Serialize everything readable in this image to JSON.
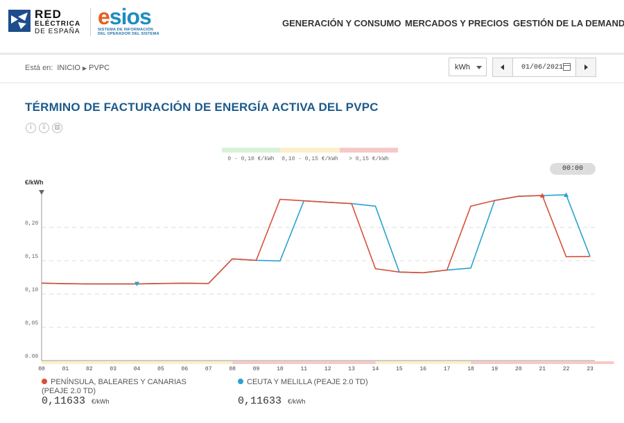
{
  "header": {
    "ree_line1": "RED",
    "ree_line2": "ELÉCTRICA",
    "ree_line3": "DE ESPAÑA",
    "esios_e": "e",
    "esios_rest": "sios",
    "esios_sub1": "SISTEMA DE INFORMACIÓN",
    "esios_sub2": "DEL OPERADOR DEL SISTEMA",
    "nav": [
      "GENERACIÓN Y CONSUMO",
      "MERCADOS Y PRECIOS",
      "GESTIÓN DE LA DEMANDA"
    ]
  },
  "breadcrumb": {
    "label": "Está en:",
    "home": "INICIO",
    "current": "PVPC"
  },
  "controls": {
    "unit": "kWh",
    "date": "01/06/2021"
  },
  "page_title": "TÉRMINO DE FACTURACIÓN DE ENERGÍA ACTIVA DEL PVPC",
  "icons": [
    "info-icon",
    "download-icon",
    "chart-icon"
  ],
  "icon_glyphs": {
    "info": "i",
    "download": "⇩",
    "chart": "▥"
  },
  "bands_legend": [
    {
      "label": "0 - 0,10 €/kWh",
      "color": "#d9f2d9"
    },
    {
      "label": "0,10 - 0,15 €/kWh",
      "color": "#fbf0c8"
    },
    {
      "label": "> 0,15 €/kWh",
      "color": "#f6c9c9"
    }
  ],
  "time_indicator": "00:00",
  "chart_data": {
    "type": "line",
    "ylabel": "€/kWh",
    "ylim": [
      0,
      0.25
    ],
    "yticks": [
      "0.00",
      "0,05",
      "0,10",
      "0,15",
      "0,20"
    ],
    "ytick_values": [
      0,
      0.05,
      0.1,
      0.15,
      0.2
    ],
    "categories": [
      "00",
      "01",
      "02",
      "03",
      "04",
      "05",
      "06",
      "07",
      "08",
      "09",
      "10",
      "11",
      "12",
      "13",
      "14",
      "15",
      "16",
      "17",
      "18",
      "19",
      "20",
      "21",
      "22",
      "23"
    ],
    "series": [
      {
        "name": "PENÍNSULA, BALEARES Y CANARIAS (PEAJE 2.0 TD)",
        "color": "#d94f37",
        "values": [
          0.11633,
          0.1155,
          0.1152,
          0.1152,
          0.1152,
          0.1158,
          0.1162,
          0.1158,
          0.1528,
          0.1506,
          0.2422,
          0.24,
          0.2378,
          0.2358,
          0.138,
          0.133,
          0.132,
          0.136,
          0.232,
          0.2405,
          0.2468,
          0.248,
          0.156,
          0.1565
        ]
      },
      {
        "name": "CEUTA Y MELILLA (PEAJE 2.0 TD)",
        "color": "#2aa2cf",
        "values": [
          0.11633,
          0.1155,
          0.1152,
          0.1152,
          0.1152,
          0.1158,
          0.1162,
          0.1158,
          0.1528,
          0.1506,
          0.1497,
          0.24,
          0.2378,
          0.2358,
          0.232,
          0.133,
          0.132,
          0.136,
          0.139,
          0.2405,
          0.2468,
          0.248,
          0.249,
          0.1565
        ]
      }
    ],
    "band_colors_by_hour": [
      "y",
      "y",
      "y",
      "y",
      "y",
      "y",
      "y",
      "y",
      "r",
      "r",
      "r",
      "r",
      "r",
      "r",
      "y",
      "y",
      "y",
      "y",
      "r",
      "r",
      "r",
      "r",
      "r",
      "r"
    ]
  },
  "series_readout": [
    {
      "label": "PENÍNSULA, BALEARES Y CANARIAS (PEAJE 2.0 TD)",
      "value": "0,11633",
      "unit": "€/kWh",
      "color": "#d94f37"
    },
    {
      "label": "CEUTA Y MELILLA (PEAJE 2.0 TD)",
      "value": "0,11633",
      "unit": "€/kWh",
      "color": "#2aa2cf"
    }
  ]
}
